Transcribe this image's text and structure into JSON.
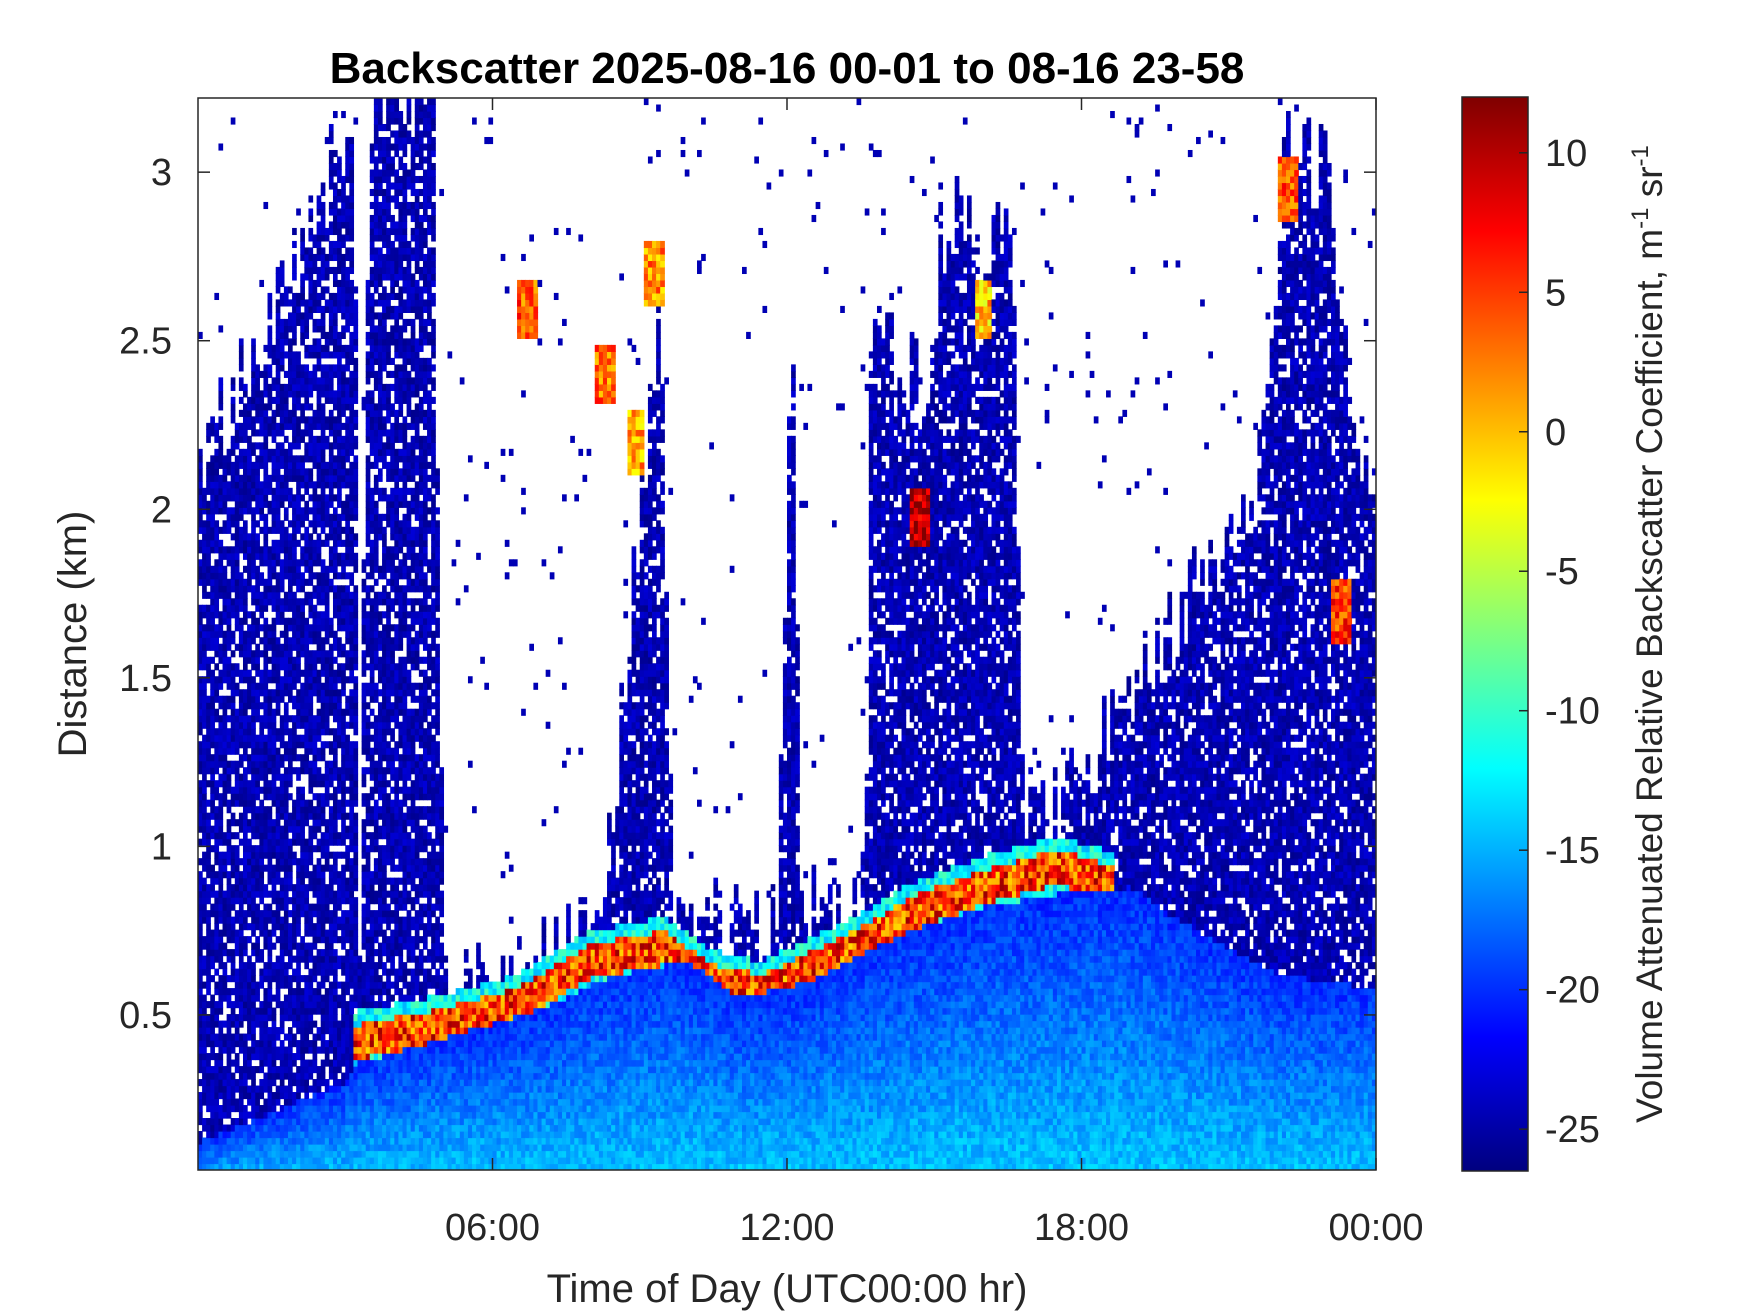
{
  "chart_data": {
    "type": "heatmap",
    "title": "Backscatter 2025-08-16 00-01 to 08-16 23-58",
    "xlabel": "Time of Day (UTC00:00 hr)",
    "ylabel": "Distance (km)",
    "colorbar_label": "Volume Attenuated Relative Backscatter Coefficient, m",
    "colorbar_sup_1": "-1",
    "colorbar_mid": " sr",
    "colorbar_sup_2": "-1",
    "xlim_hours": [
      0,
      24
    ],
    "ylim_km": [
      0.04,
      3.22
    ],
    "clim": [
      -26.5,
      12
    ],
    "colormap": "jet",
    "x_ticks": [
      {
        "hour": 6,
        "label": "06:00"
      },
      {
        "hour": 12,
        "label": "12:00"
      },
      {
        "hour": 18,
        "label": "18:00"
      },
      {
        "hour": 24,
        "label": "00:00"
      }
    ],
    "y_ticks": [
      {
        "km": 0.5,
        "label": "0.5"
      },
      {
        "km": 1,
        "label": "1"
      },
      {
        "km": 1.5,
        "label": "1.5"
      },
      {
        "km": 2,
        "label": "2"
      },
      {
        "km": 2.5,
        "label": "2.5"
      },
      {
        "km": 3,
        "label": "3"
      }
    ],
    "colorbar_ticks": [
      {
        "value": -25,
        "label": "-25"
      },
      {
        "value": -20,
        "label": "-20"
      },
      {
        "value": -15,
        "label": "-15"
      },
      {
        "value": -10,
        "label": "-10"
      },
      {
        "value": -5,
        "label": "-5"
      },
      {
        "value": 0,
        "label": "0"
      },
      {
        "value": 5,
        "label": "5"
      },
      {
        "value": 10,
        "label": "10"
      }
    ],
    "mixed_layer_top_km": [
      {
        "hour": 0,
        "km": 0.12
      },
      {
        "hour": 3,
        "km": 0.3
      },
      {
        "hour": 3.3,
        "km": 0.36
      },
      {
        "hour": 5,
        "km": 0.43
      },
      {
        "hour": 7,
        "km": 0.52
      },
      {
        "hour": 8.5,
        "km": 0.62
      },
      {
        "hour": 10,
        "km": 0.66
      },
      {
        "hour": 11,
        "km": 0.55
      },
      {
        "hour": 12.5,
        "km": 0.6
      },
      {
        "hour": 13.5,
        "km": 0.68
      },
      {
        "hour": 14.5,
        "km": 0.75
      },
      {
        "hour": 16,
        "km": 0.82
      },
      {
        "hour": 17.5,
        "km": 0.86
      },
      {
        "hour": 19,
        "km": 0.88
      },
      {
        "hour": 20,
        "km": 0.78
      },
      {
        "hour": 22,
        "km": 0.62
      },
      {
        "hour": 24,
        "km": 0.58
      }
    ],
    "cloud_layer_km": [
      {
        "hour": 3.2,
        "km": 0.42
      },
      {
        "hour": 5,
        "km": 0.47
      },
      {
        "hour": 6.5,
        "km": 0.53
      },
      {
        "hour": 8,
        "km": 0.66
      },
      {
        "hour": 9.5,
        "km": 0.7
      },
      {
        "hour": 10.5,
        "km": 0.6
      },
      {
        "hour": 11.5,
        "km": 0.57
      },
      {
        "hour": 12.5,
        "km": 0.64
      },
      {
        "hour": 13.5,
        "km": 0.71
      },
      {
        "hour": 14.5,
        "km": 0.8
      },
      {
        "hour": 16,
        "km": 0.88
      },
      {
        "hour": 17.5,
        "km": 0.94
      },
      {
        "hour": 18.5,
        "km": 0.9
      }
    ],
    "high_cloud_patches": [
      {
        "hour": 6.7,
        "km": 2.6,
        "value": 4
      },
      {
        "hour": 8.3,
        "km": 2.4,
        "value": 3
      },
      {
        "hour": 8.9,
        "km": 2.2,
        "value": 1
      },
      {
        "hour": 9.3,
        "km": 2.7,
        "value": 2
      },
      {
        "hour": 14.7,
        "km": 1.98,
        "value": 10
      },
      {
        "hour": 16.0,
        "km": 2.6,
        "value": 0
      },
      {
        "hour": 22.2,
        "km": 2.95,
        "value": 4
      },
      {
        "hour": 23.3,
        "km": 1.7,
        "value": 5
      }
    ]
  }
}
